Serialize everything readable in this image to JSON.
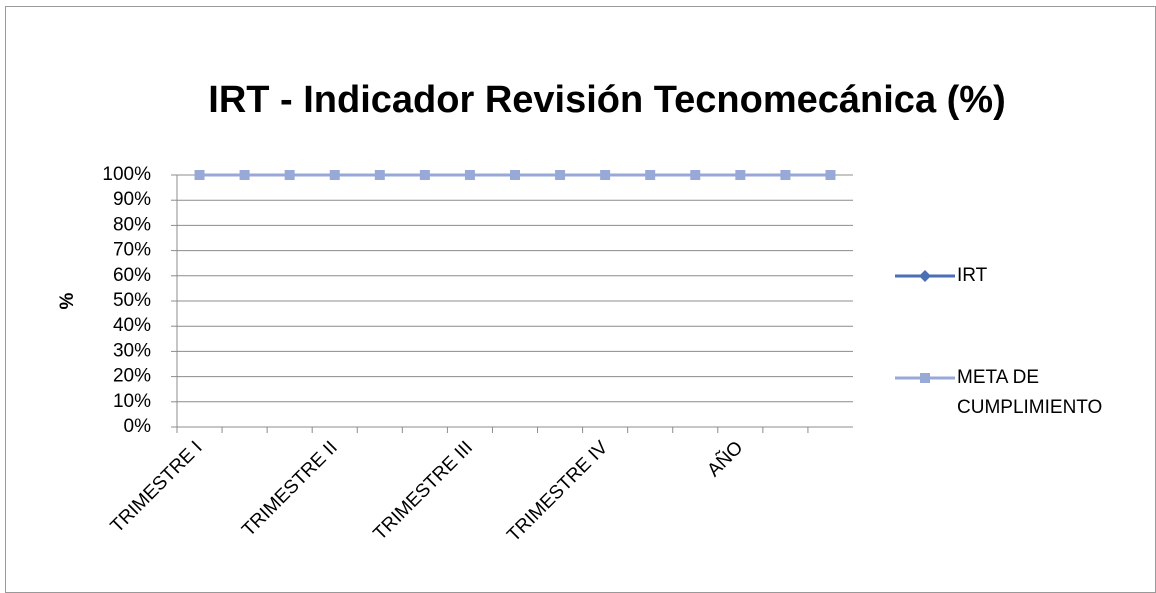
{
  "chart_data": {
    "type": "line",
    "title": "IRT - Indicador Revisión Tecnomecánica  (%)",
    "y_label": "%",
    "categories": [
      "TRIMESTRE I",
      null,
      null,
      "TRIMESTRE II",
      null,
      null,
      "TRIMESTRE III",
      null,
      null,
      "TRIMESTRE IV",
      null,
      null,
      "AÑO",
      null,
      null
    ],
    "series": [
      {
        "name": "IRT",
        "color": "#4a6fb5",
        "marker": "diamond",
        "values": [
          null,
          null,
          null,
          null,
          null,
          null,
          null,
          null,
          null,
          null,
          null,
          null,
          null,
          null,
          null
        ]
      },
      {
        "name": "META DE CUMPLIMIENTO",
        "color": "#98a9d8",
        "marker": "square",
        "values": [
          100,
          100,
          100,
          100,
          100,
          100,
          100,
          100,
          100,
          100,
          100,
          100,
          100,
          100,
          100
        ]
      }
    ],
    "ylim": [
      0,
      100
    ],
    "yticks": [
      {
        "value": 0,
        "label": "0%"
      },
      {
        "value": 10,
        "label": "10%"
      },
      {
        "value": 20,
        "label": "20%"
      },
      {
        "value": 30,
        "label": "30%"
      },
      {
        "value": 40,
        "label": "40%"
      },
      {
        "value": 50,
        "label": "50%"
      },
      {
        "value": 60,
        "label": "60%"
      },
      {
        "value": 70,
        "label": "70%"
      },
      {
        "value": 80,
        "label": "80%"
      },
      {
        "value": 90,
        "label": "90%"
      },
      {
        "value": 100,
        "label": "100%"
      }
    ],
    "grid": true,
    "legend": "right"
  }
}
